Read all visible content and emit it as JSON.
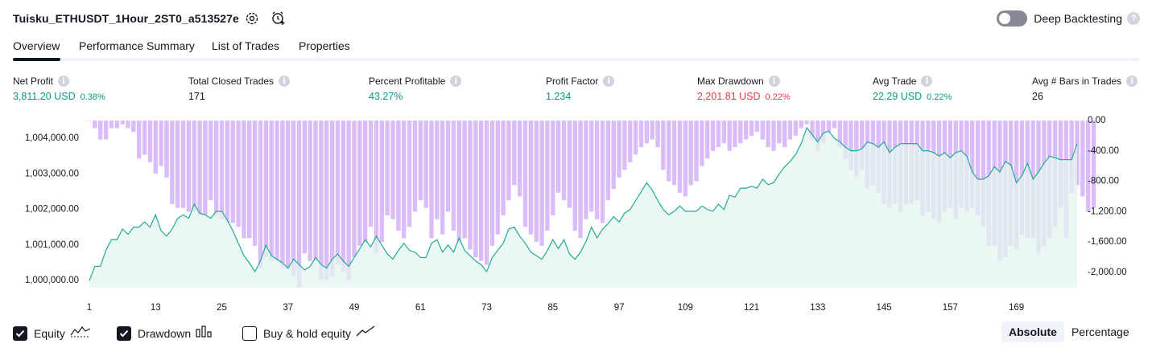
{
  "header": {
    "title": "Tuisku_ETHUSDT_1Hour_2ST0_a513527e",
    "deep_backtesting_label": "Deep Backtesting",
    "deep_backtesting_enabled": false,
    "help_icon": "question-icon"
  },
  "tabs": [
    {
      "label": "Overview",
      "active": true
    },
    {
      "label": "Performance Summary",
      "active": false
    },
    {
      "label": "List of Trades",
      "active": false
    },
    {
      "label": "Properties",
      "active": false
    }
  ],
  "stats": [
    {
      "label": "Net Profit",
      "value": "3,811.20 USD",
      "pct": "0.38%",
      "tone": "green"
    },
    {
      "label": "Total Closed Trades",
      "value": "171",
      "pct": "",
      "tone": "dark"
    },
    {
      "label": "Percent Profitable",
      "value": "43.27%",
      "pct": "",
      "tone": "green"
    },
    {
      "label": "Profit Factor",
      "value": "1.234",
      "pct": "",
      "tone": "green"
    },
    {
      "label": "Max Drawdown",
      "value": "2,201.81 USD",
      "pct": "0.22%",
      "tone": "red"
    },
    {
      "label": "Avg Trade",
      "value": "22.29 USD",
      "pct": "0.22%",
      "tone": "green"
    },
    {
      "label": "Avg # Bars in Trades",
      "value": "26",
      "pct": "",
      "tone": "dark"
    }
  ],
  "colors": {
    "equity_line": "#22ab94",
    "equity_fill": "#e3f4ee",
    "drawdown_bar": "#cfa6f9",
    "green": "#089981",
    "red": "#f23645"
  },
  "chart_data": {
    "type": "area",
    "x_ticks": [
      "1",
      "13",
      "25",
      "37",
      "49",
      "61",
      "73",
      "85",
      "97",
      "109",
      "121",
      "133",
      "145",
      "157",
      "169"
    ],
    "y_left_ticks": [
      "1,000,000.00",
      "1,001,000.00",
      "1,002,000.00",
      "1,003,000.00",
      "1,004,000.00"
    ],
    "y_left_range": [
      999800,
      1004500
    ],
    "y_right_ticks": [
      "0.00",
      "-400.00",
      "-800.00",
      "-1,200.00",
      "-1,600.00",
      "-2,000.00"
    ],
    "y_right_range": [
      -2201.81,
      0
    ],
    "series": [
      {
        "name": "Equity",
        "values": [
          1000000,
          1000400,
          1000400,
          1000850,
          1001150,
          1001150,
          1001450,
          1001300,
          1001500,
          1001500,
          1001650,
          1001500,
          1001850,
          1001400,
          1001250,
          1001450,
          1001750,
          1001850,
          1001750,
          1002150,
          1001900,
          1001850,
          1001750,
          1001950,
          1001950,
          1001700,
          1001400,
          1001050,
          1000700,
          1000500,
          1000250,
          1000550,
          1001000,
          1000700,
          1000600,
          1000500,
          1000350,
          1000600,
          1000450,
          1000300,
          1000400,
          1000650,
          1000450,
          1000350,
          1000600,
          1000750,
          1000550,
          1000400,
          1000650,
          1000900,
          1001150,
          1000950,
          1001250,
          1001000,
          1000750,
          1000600,
          1000850,
          1001050,
          1000850,
          1000800,
          1000650,
          1000650,
          1001050,
          1001150,
          1000800,
          1001000,
          1000800,
          1001200,
          1000850,
          1000700,
          1000550,
          1000450,
          1000250,
          1000650,
          1000850,
          1001050,
          1001450,
          1001500,
          1001250,
          1001050,
          1000800,
          1000700,
          1000600,
          1000850,
          1001150,
          1000900,
          1001150,
          1000750,
          1000600,
          1000800,
          1001100,
          1001500,
          1001200,
          1001450,
          1001600,
          1001800,
          1001650,
          1001900,
          1002000,
          1002250,
          1002500,
          1002750,
          1002550,
          1002250,
          1002000,
          1001850,
          1001950,
          1002100,
          1001950,
          1001950,
          1001950,
          1002100,
          1002000,
          1001950,
          1002150,
          1002000,
          1002400,
          1002350,
          1002600,
          1002600,
          1002650,
          1002600,
          1002850,
          1002700,
          1002750,
          1003000,
          1003200,
          1003350,
          1003550,
          1003850,
          1004300,
          1004100,
          1003900,
          1004150,
          1004200,
          1004000,
          1003900,
          1003750,
          1003650,
          1003650,
          1003700,
          1003900,
          1003850,
          1003750,
          1003900,
          1003600,
          1003750,
          1003850,
          1003850,
          1003850,
          1003850,
          1003650,
          1003650,
          1003600,
          1003500,
          1003600,
          1003450,
          1003600,
          1003650,
          1003500,
          1003050,
          1002850,
          1002850,
          1002950,
          1003200,
          1003050,
          1003350,
          1003250,
          1002750,
          1002950,
          1003300,
          1002850,
          1003050,
          1003300,
          1003500,
          1003450,
          1003400,
          1003400,
          1003400,
          1003850
        ]
      },
      {
        "name": "Drawdown",
        "values": [
          0,
          -100,
          -250,
          -250,
          -100,
          -100,
          -50,
          -100,
          -150,
          -500,
          -450,
          -550,
          -700,
          -600,
          -750,
          -1100,
          -1150,
          -1150,
          -1200,
          -1200,
          -1250,
          -1250,
          -1050,
          -1250,
          -1300,
          -1350,
          -1350,
          -1400,
          -1550,
          -1550,
          -1650,
          -1950,
          -1800,
          -1850,
          -1850,
          -1950,
          -1950,
          -2050,
          -2200,
          -1750,
          -1850,
          -1850,
          -2100,
          -2100,
          -2050,
          -1900,
          -2000,
          -2100,
          -1800,
          -1650,
          -1600,
          -1400,
          -1750,
          -1600,
          -1250,
          -1300,
          -1450,
          -1550,
          -1400,
          -1200,
          -1050,
          -1150,
          -1550,
          -1300,
          -1500,
          -1200,
          -1450,
          -1600,
          -1550,
          -1700,
          -1800,
          -1850,
          -1900,
          -1650,
          -1500,
          -1250,
          -1050,
          -850,
          -1000,
          -1400,
          -1500,
          -1600,
          -1650,
          -1450,
          -1250,
          -950,
          -1050,
          -1150,
          -1450,
          -1550,
          -1300,
          -1200,
          -1300,
          -1350,
          -1050,
          -900,
          -750,
          -650,
          -550,
          -450,
          -350,
          -300,
          -250,
          -350,
          -650,
          -800,
          -850,
          -950,
          -1000,
          -850,
          -800,
          -600,
          -500,
          -400,
          -350,
          -300,
          -400,
          -350,
          -300,
          -250,
          -200,
          -150,
          -250,
          -350,
          -400,
          -300,
          -350,
          -250,
          -200,
          -100,
          -50,
          -250,
          -400,
          -300,
          -150,
          -100,
          -350,
          -500,
          -650,
          -750,
          -650,
          -900,
          -850,
          -950,
          -1100,
          -1150,
          -1100,
          -1200,
          -1100,
          -1100,
          -1050,
          -1250,
          -1200,
          -1300,
          -1350,
          -1200,
          -1150,
          -1300,
          -1150,
          -1200,
          -1150,
          -1250,
          -1400,
          -1650,
          -1650,
          -1850,
          -1800,
          -1650,
          -1700,
          -1500,
          -1550,
          -1550,
          -1750,
          -1650,
          -1550,
          -1400,
          -1150,
          -1550,
          -950,
          -850,
          -1000,
          -1200,
          -1150
        ]
      }
    ]
  },
  "legend": [
    {
      "label": "Equity",
      "checked": true,
      "icon": "equity-line-icon"
    },
    {
      "label": "Drawdown",
      "checked": true,
      "icon": "drawdown-bars-icon"
    },
    {
      "label": "Buy & hold equity",
      "checked": false,
      "icon": "buy-hold-line-icon"
    }
  ],
  "modes": [
    {
      "label": "Absolute",
      "active": true
    },
    {
      "label": "Percentage",
      "active": false
    }
  ]
}
